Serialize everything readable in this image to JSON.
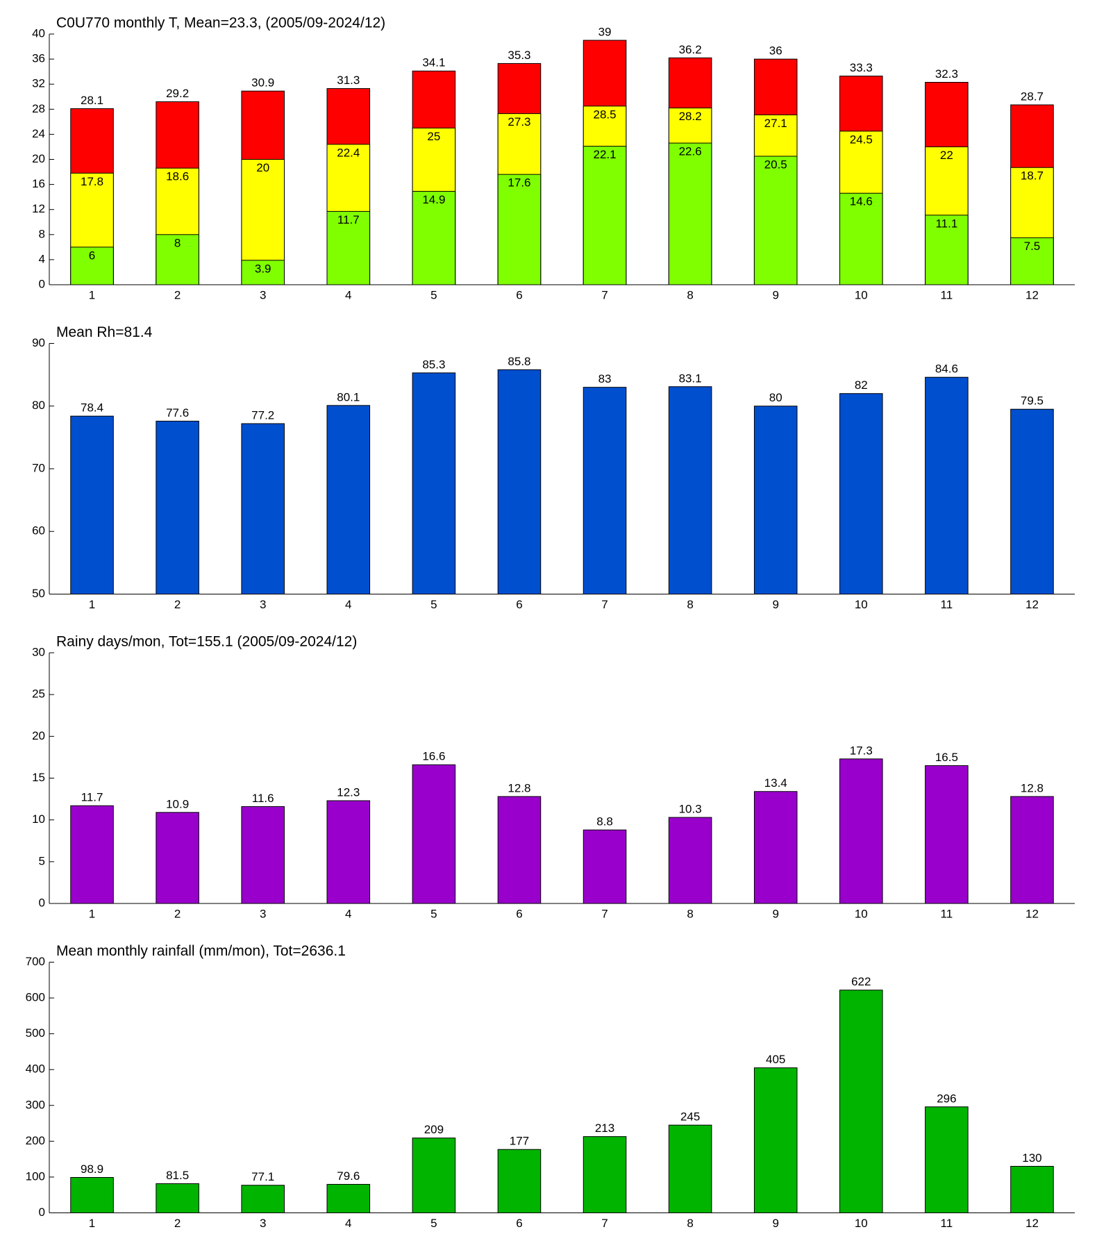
{
  "chart_data": [
    {
      "type": "bar",
      "title": "C0U770 monthly T, Mean=23.3, (2005/09-2024/12)",
      "categories": [
        "1",
        "2",
        "3",
        "4",
        "5",
        "6",
        "7",
        "8",
        "9",
        "10",
        "11",
        "12"
      ],
      "series": [
        {
          "color": "#ff0000",
          "values": [
            28.1,
            29.2,
            30.9,
            31.3,
            34.1,
            35.3,
            39,
            36.2,
            36,
            33.3,
            32.3,
            28.7
          ]
        },
        {
          "color": "#ffff00",
          "values": [
            17.8,
            18.6,
            20,
            22.4,
            25,
            27.3,
            28.5,
            28.2,
            27.1,
            24.5,
            22,
            18.7
          ]
        },
        {
          "color": "#80ff00",
          "values": [
            6,
            8,
            3.9,
            11.7,
            14.9,
            17.6,
            22.1,
            22.6,
            20.5,
            14.6,
            11.1,
            7.5
          ]
        }
      ],
      "ylim": [
        0,
        40
      ],
      "yticks": [
        0,
        4,
        8,
        12,
        16,
        20,
        24,
        28,
        32,
        36,
        40
      ]
    },
    {
      "type": "bar",
      "title": "Mean Rh=81.4",
      "categories": [
        "1",
        "2",
        "3",
        "4",
        "5",
        "6",
        "7",
        "8",
        "9",
        "10",
        "11",
        "12"
      ],
      "values": [
        78.4,
        77.6,
        77.2,
        80.1,
        85.3,
        85.8,
        83,
        83.1,
        80,
        82,
        84.6,
        79.5
      ],
      "color": "#004fcf",
      "ylim": [
        50,
        90
      ],
      "yticks": [
        50,
        60,
        70,
        80,
        90
      ]
    },
    {
      "type": "bar",
      "title": "Rainy days/mon, Tot=155.1 (2005/09-2024/12)",
      "categories": [
        "1",
        "2",
        "3",
        "4",
        "5",
        "6",
        "7",
        "8",
        "9",
        "10",
        "11",
        "12"
      ],
      "values": [
        11.7,
        10.9,
        11.6,
        12.3,
        16.6,
        12.8,
        8.8,
        10.3,
        13.4,
        17.3,
        16.5,
        12.8
      ],
      "color": "#9900cc",
      "ylim": [
        0,
        30
      ],
      "yticks": [
        0,
        5,
        10,
        15,
        20,
        25,
        30
      ]
    },
    {
      "type": "bar",
      "title": "Mean monthly rainfall (mm/mon), Tot=2636.1",
      "categories": [
        "1",
        "2",
        "3",
        "4",
        "5",
        "6",
        "7",
        "8",
        "9",
        "10",
        "11",
        "12"
      ],
      "values": [
        98.9,
        81.5,
        77.1,
        79.6,
        209,
        177,
        213,
        245,
        405,
        622,
        296,
        130
      ],
      "color": "#00b400",
      "ylim": [
        0,
        700
      ],
      "yticks": [
        0,
        100,
        200,
        300,
        400,
        500,
        600,
        700
      ]
    }
  ]
}
